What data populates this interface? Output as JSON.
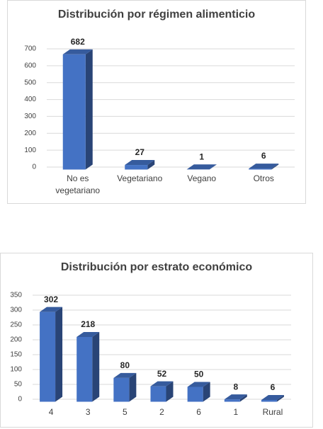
{
  "chart_data": [
    {
      "type": "bar3d",
      "title": "Distribución por régimen alimenticio",
      "categories": [
        "No es vegetariano",
        "Vegetariano",
        "Vegano",
        "Otros"
      ],
      "values": [
        682,
        27,
        1,
        6
      ],
      "color": "#4472c4",
      "ylim": [
        0,
        700
      ],
      "yticks": [
        0,
        100,
        200,
        300,
        400,
        500,
        600,
        700
      ],
      "grid": true
    },
    {
      "type": "bar3d",
      "title": "Distribución por estrato económico",
      "categories": [
        "4",
        "3",
        "5",
        "2",
        "6",
        "1",
        "Rural"
      ],
      "values": [
        302,
        218,
        80,
        52,
        50,
        8,
        6
      ],
      "color": "#4472c4",
      "ylim": [
        0,
        350
      ],
      "yticks": [
        0,
        50,
        100,
        150,
        200,
        250,
        300,
        350
      ],
      "grid": true
    }
  ]
}
